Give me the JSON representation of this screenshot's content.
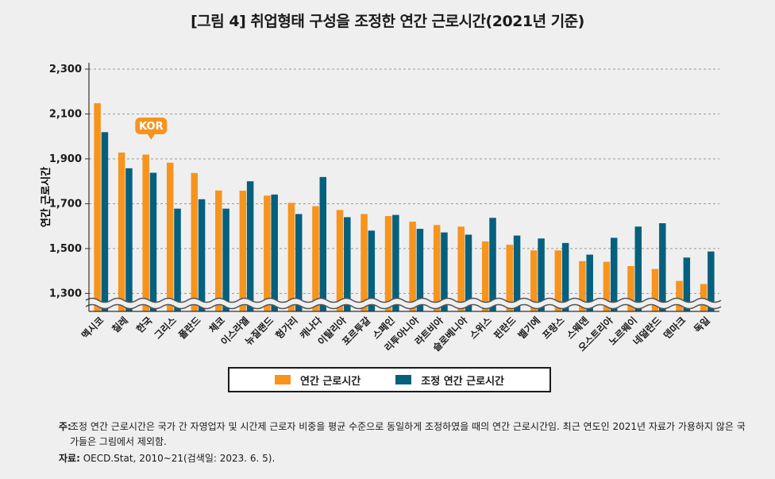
{
  "title": "[그림 4] 취업형태 구성을 조정한 연간 근로시간(2021년 기준)",
  "callout": "KOR",
  "note_label": "주:",
  "note_text": "조정 연간 근로시간은 국가 간 자영업자 및 시간제 근로자 비중을 평균 수준으로 동일하게 조정하였을 때의 연간 근로시간임. 최근 연도인 2021년 자료가 가용하지 않은 국가들은 그림에서 제외함.",
  "source_label": "자료:",
  "source_text": "OECD.Stat, 2010~21(검색일: 2023. 6. 5).",
  "colors": {
    "orange": "#f7941d",
    "teal": "#05607e",
    "callout": "#f7941d"
  },
  "chart_data": {
    "type": "bar",
    "title": "[그림 4] 취업형태 구성을 조정한 연간 근로시간(2021년 기준)",
    "xlabel": "",
    "ylabel": "연간 근로시간",
    "ylim": [
      1220,
      2300
    ],
    "yticks": [
      1300,
      1500,
      1700,
      1900,
      2100,
      2300
    ],
    "ytick_labels": [
      "1,300",
      "1,500",
      "1,700",
      "1,900",
      "2,100",
      "2,300"
    ],
    "axis_break": true,
    "categories": [
      "멕시코",
      "칠레",
      "한국",
      "그리스",
      "폴란드",
      "체코",
      "이스라엘",
      "뉴질랜드",
      "헝가리",
      "캐나다",
      "이탈리아",
      "포르투갈",
      "스페인",
      "리투아니아",
      "라트비아",
      "슬로베니아",
      "스위스",
      "핀란드",
      "벨기에",
      "프랑스",
      "스웨덴",
      "오스트리아",
      "노르웨이",
      "네덜란드",
      "덴마크",
      "독일"
    ],
    "series": [
      {
        "name": "연간 근로시간",
        "values": [
          2148,
          1928,
          1919,
          1883,
          1837,
          1759,
          1758,
          1736,
          1704,
          1689,
          1672,
          1654,
          1645,
          1620,
          1605,
          1598,
          1532,
          1517,
          1492,
          1492,
          1444,
          1441,
          1422,
          1409,
          1356,
          1342
        ]
      },
      {
        "name": "조정 연간 근로시간",
        "values": [
          2019,
          1858,
          1838,
          1678,
          1720,
          1678,
          1800,
          1741,
          1654,
          1819,
          1640,
          1580,
          1650,
          1588,
          1572,
          1562,
          1637,
          1558,
          1545,
          1525,
          1473,
          1548,
          1598,
          1613,
          1460,
          1487
        ]
      }
    ]
  }
}
